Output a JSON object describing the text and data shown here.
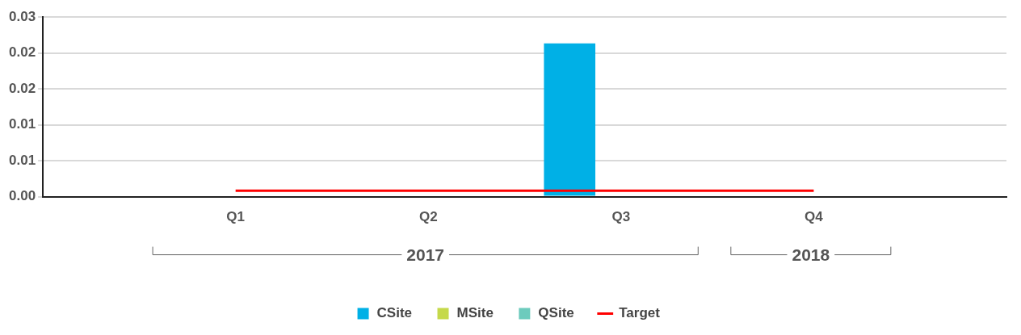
{
  "chart_data": {
    "type": "bar",
    "categories": [
      null,
      "Q1",
      "Q2",
      "Q3",
      "Q4",
      null
    ],
    "series": [
      {
        "name": "CSite",
        "color": "#00b0e6",
        "values": [
          null,
          0,
          0,
          0.0256,
          0,
          null
        ]
      },
      {
        "name": "MSite",
        "color": "#c5d94a",
        "values": [
          null,
          0,
          0,
          0,
          0,
          null
        ]
      },
      {
        "name": "QSite",
        "color": "#6dcbbd",
        "values": [
          null,
          0,
          0,
          0,
          0,
          null
        ]
      },
      {
        "name": "Target",
        "type": "line",
        "color": "#ff0000",
        "values": [
          null,
          0.001,
          0.001,
          0.001,
          0.001,
          null
        ]
      }
    ],
    "ylim": [
      0,
      0.03
    ],
    "yticks": [
      {
        "value": 0,
        "label": "0.00"
      },
      {
        "value": 0.006,
        "label": "0.01"
      },
      {
        "value": 0.012,
        "label": "0.01"
      },
      {
        "value": 0.018,
        "label": "0.02"
      },
      {
        "value": 0.024,
        "label": "0.02"
      },
      {
        "value": 0.03,
        "label": "0.03"
      }
    ],
    "grid": "y",
    "legend": "bottom",
    "annotations": [
      "2017",
      "2018"
    ]
  }
}
